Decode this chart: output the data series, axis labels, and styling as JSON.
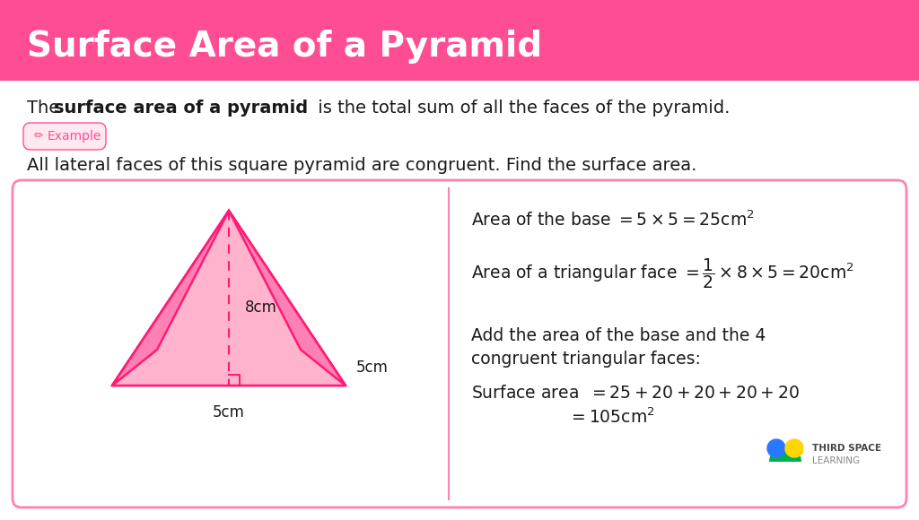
{
  "title": "Surface Area of a Pyramid",
  "title_bg_color": "#FF4D94",
  "title_text_color": "#FFFFFF",
  "bg_color": "#FFFFFF",
  "body_text_color": "#1a1a1a",
  "example_label": "Example",
  "example_label_color": "#FF4D94",
  "example_label_bg": "#FFE8F0",
  "question_text": "All lateral faces of this square pyramid are congruent. Find the surface area.",
  "box_border_color": "#FF80B3",
  "pyramid_fill_front": "#FFB3CC",
  "pyramid_fill_side": "#FF80B3",
  "pyramid_fill_base": "#FF99BB",
  "pyramid_stroke": "#FF1A75",
  "label_8cm": "8cm",
  "label_5cm_right": "5cm",
  "label_5cm_bottom": "5cm"
}
